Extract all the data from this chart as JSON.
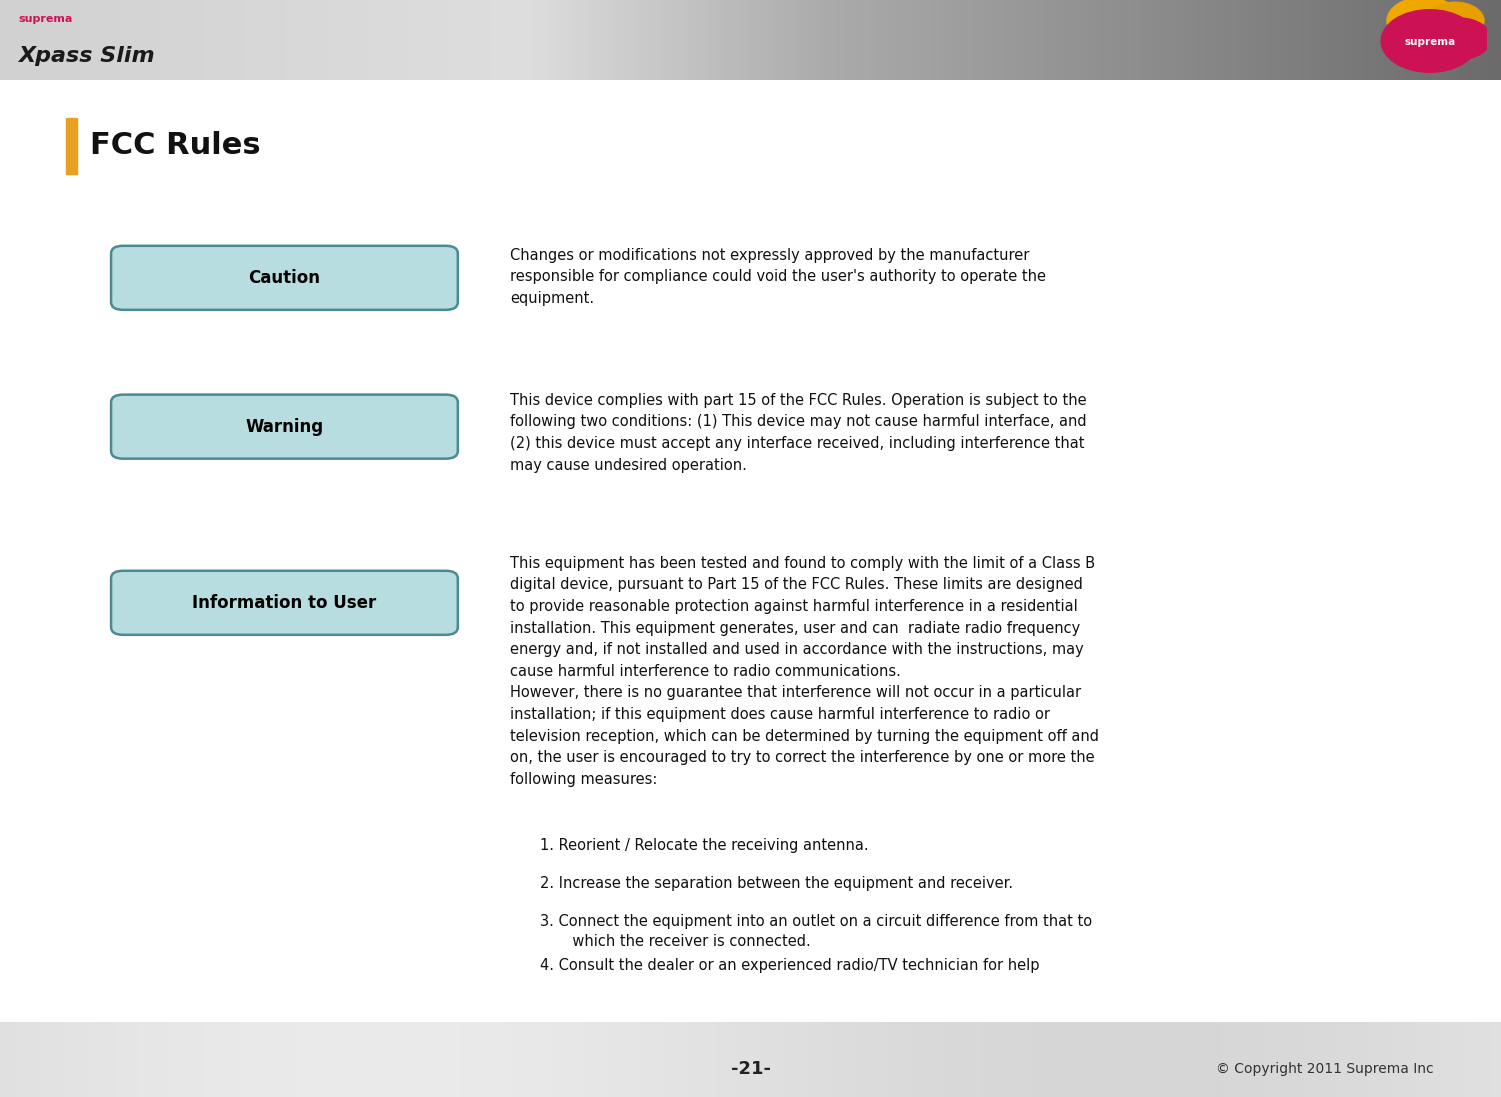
{
  "title": "FCC Rules",
  "title_bar_color": "#E8A020",
  "title_fontsize": 22,
  "title_fontweight": "bold",
  "page_number": "-21-",
  "copyright": "© Copyright 2011 Suprema Inc",
  "main_bg": "#FFFFFF",
  "button_bg": "#B8DDE0",
  "button_border": "#4A8A90",
  "button_text_color": "#000000",
  "caution_text": "Changes or modifications not expressly approved by the manufacturer\nresponsible for compliance could void the user's authority to operate the\nequipment.",
  "warning_text": "This device complies with part 15 of the FCC Rules. Operation is subject to the\nfollowing two conditions: (1) This device may not cause harmful interface, and\n(2) this device must accept any interface received, including interference that\nmay cause undesired operation.",
  "info_text": "This equipment has been tested and found to comply with the limit of a Class B\ndigital device, pursuant to Part 15 of the FCC Rules. These limits are designed\nto provide reasonable protection against harmful interference in a residential\ninstallation. This equipment generates, user and can  radiate radio frequency\nenergy and, if not installed and used in accordance with the instructions, may\ncause harmful interference to radio communications.\nHowever, there is no guarantee that interference will not occur in a particular\ninstallation; if this equipment does cause harmful interference to radio or\ntelevision reception, which can be determined by turning the equipment off and\non, the user is encouraged to try to correct the interference by one or more the\nfollowing measures:",
  "list_items": [
    "1. Reorient / Relocate the receiving antenna.",
    "2. Increase the separation between the equipment and receiver.",
    "3. Connect the equipment into an outlet on a circuit difference from that to\n       which the receiver is connected.",
    "4. Consult the dealer or an experienced radio/TV technician for help"
  ],
  "text_fontsize": 10.5,
  "suprema_text_color": "#CC1155",
  "xpass_text_color": "#1A1A1A",
  "header_suprema": "suprema",
  "header_product": "Xpass Slim"
}
